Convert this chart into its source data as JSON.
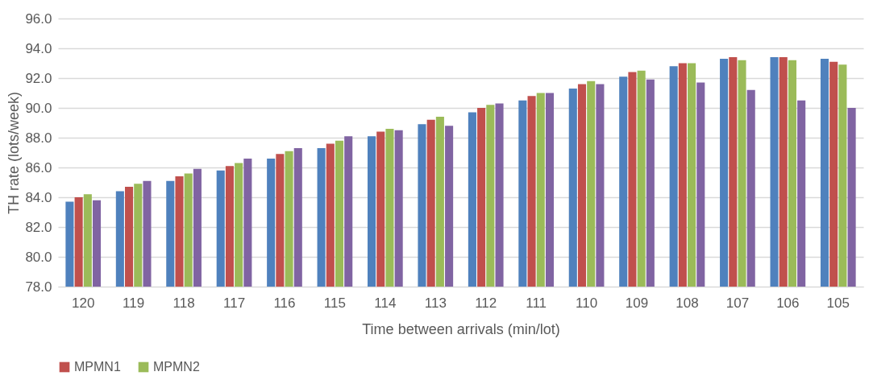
{
  "chart_data": {
    "type": "bar",
    "xlabel": "Time between arrivals (min/lot)",
    "ylabel": "TH rate (lots/week)",
    "categories": [
      "120",
      "119",
      "118",
      "117",
      "116",
      "115",
      "114",
      "113",
      "112",
      "111",
      "110",
      "109",
      "108",
      "107",
      "106",
      "105"
    ],
    "series": [
      {
        "color": "#4f81bd",
        "values": [
          83.7,
          84.4,
          85.1,
          85.8,
          86.6,
          87.3,
          88.1,
          88.9,
          89.7,
          90.5,
          91.3,
          92.1,
          92.8,
          93.3,
          93.4,
          93.3
        ]
      },
      {
        "name": "MPMN1",
        "color": "#c0504d",
        "values": [
          84.0,
          84.7,
          85.4,
          86.1,
          86.9,
          87.6,
          88.4,
          89.2,
          90.0,
          90.8,
          91.6,
          92.4,
          93.0,
          93.4,
          93.4,
          93.1
        ]
      },
      {
        "name": "MPMN2",
        "color": "#9bbb59",
        "values": [
          84.2,
          84.9,
          85.6,
          86.3,
          87.1,
          87.8,
          88.6,
          89.4,
          90.2,
          91.0,
          91.8,
          92.5,
          93.0,
          93.2,
          93.2,
          92.9
        ]
      },
      {
        "color": "#8064a2",
        "values": [
          83.8,
          85.1,
          85.9,
          86.6,
          87.3,
          88.1,
          88.5,
          88.8,
          90.3,
          91.0,
          91.6,
          91.9,
          91.7,
          91.2,
          90.5,
          90.0
        ]
      }
    ],
    "ylim": [
      78,
      96
    ],
    "yticks": [
      {
        "value": 78,
        "label": "78.0"
      },
      {
        "value": 80,
        "label": "80.0"
      },
      {
        "value": 82,
        "label": "82.0"
      },
      {
        "value": 84,
        "label": "84.0"
      },
      {
        "value": 86,
        "label": "86.0"
      },
      {
        "value": 88,
        "label": "88.0"
      },
      {
        "value": 90,
        "label": "90.0"
      },
      {
        "value": 92,
        "label": "92.0"
      },
      {
        "value": 94,
        "label": "94.0"
      },
      {
        "value": 96,
        "label": "96.0"
      }
    ],
    "grid": "y",
    "legend": "bottom"
  }
}
